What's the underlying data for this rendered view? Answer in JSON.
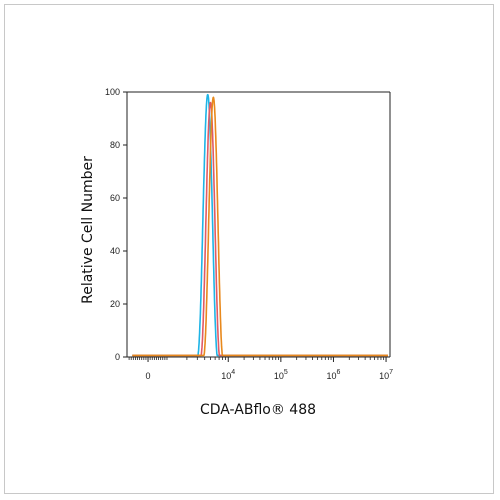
{
  "chart_data": {
    "type": "line",
    "title": "",
    "xlabel": "CDA-ABflo® 488",
    "ylabel": "Relative Cell Number",
    "x_scale": "biexponential",
    "xlim": [
      -1000,
      10000000
    ],
    "ylim": [
      0,
      100
    ],
    "x_ticks": [
      {
        "value": 0,
        "base": "0",
        "exp": ""
      },
      {
        "value": 10000,
        "base": "10",
        "exp": "4"
      },
      {
        "value": 100000,
        "base": "10",
        "exp": "5"
      },
      {
        "value": 1000000,
        "base": "10",
        "exp": "6"
      },
      {
        "value": 10000000,
        "base": "10",
        "exp": "7"
      }
    ],
    "y_ticks": [
      "0",
      "20",
      "40",
      "60",
      "80",
      "100"
    ],
    "grid": false,
    "legend": "none",
    "series": [
      {
        "color": "#1eb4e6",
        "peak_x": 4500,
        "peak_y": 99,
        "left_base_x": 3000,
        "right_base_x": 6600
      },
      {
        "color": "#e05a66",
        "peak_x": 5000,
        "peak_y": 96,
        "left_base_x": 3400,
        "right_base_x": 7200
      },
      {
        "color": "#e8891c",
        "peak_x": 5600,
        "peak_y": 98,
        "left_base_x": 3800,
        "right_base_x": 8100
      }
    ]
  }
}
